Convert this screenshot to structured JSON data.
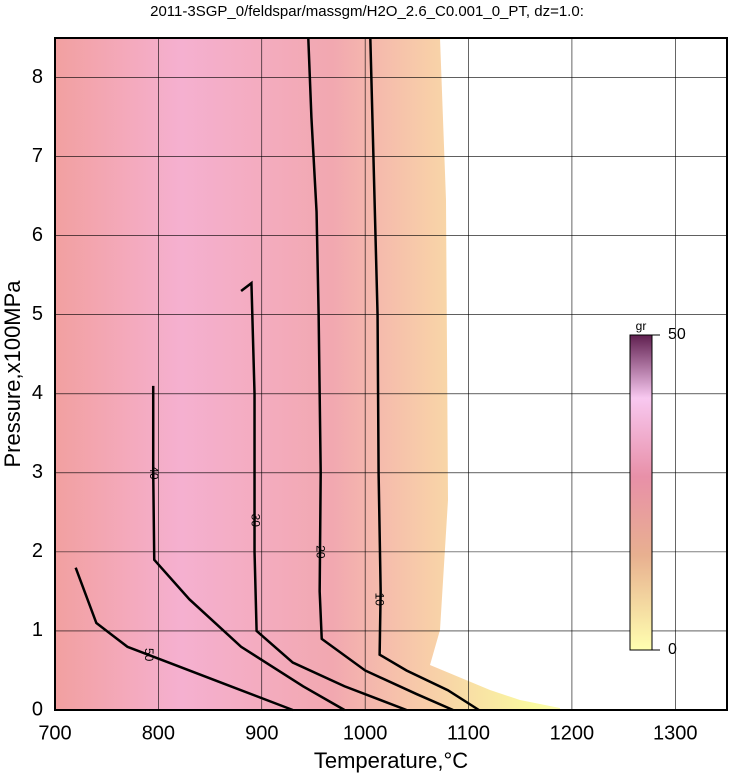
{
  "chart_data": {
    "type": "contour",
    "title": "2011-3SGP_0/feldspar/massgm/H2O_2.6_C0.001_0_PT, dz=1.0:",
    "x_label": "Temperature,°C",
    "y_label": "Pressure,x100MPa",
    "xlim": [
      700,
      1350
    ],
    "xticks": [
      700,
      800,
      900,
      1000,
      1100,
      1200,
      1300
    ],
    "ylim": [
      0,
      8.5
    ],
    "yticks": [
      0,
      1,
      2,
      3,
      4,
      5,
      6,
      7,
      8
    ],
    "grid": true,
    "contours": [
      {
        "level": 10,
        "x": [
          1005,
          1008,
          1012,
          1013,
          1015,
          1014,
          1040,
          1080,
          1110
        ],
        "y": [
          8.5,
          7,
          5,
          3,
          1.5,
          0.7,
          0.5,
          0.25,
          0
        ],
        "label_at": [
          1013,
          1.4
        ]
      },
      {
        "level": 20,
        "x": [
          945,
          948,
          953,
          955,
          957,
          956,
          958,
          1000,
          1050,
          1085
        ],
        "y": [
          8.5,
          7.5,
          6.3,
          5,
          3,
          1.5,
          0.9,
          0.5,
          0.2,
          0
        ],
        "label_at": [
          956,
          2
        ]
      },
      {
        "level": 30,
        "x": [
          880,
          890,
          893,
          893,
          895,
          930,
          980,
          1040
        ],
        "y": [
          5.3,
          5.4,
          4,
          2,
          1.0,
          0.6,
          0.3,
          0
        ],
        "label_at": [
          893,
          2.4
        ]
      },
      {
        "level": 40,
        "x": [
          795,
          795,
          796,
          830,
          880,
          940,
          980
        ],
        "y": [
          4.1,
          3,
          1.9,
          1.4,
          0.8,
          0.3,
          0
        ],
        "label_at": [
          795,
          3
        ]
      },
      {
        "level": 50,
        "x": [
          720,
          740,
          770,
          810,
          870,
          930
        ],
        "y": [
          1.8,
          1.1,
          0.8,
          0.6,
          0.3,
          0
        ],
        "label_at": [
          790,
          0.7
        ]
      }
    ],
    "colorbar": {
      "label": "gr",
      "lim": [
        0,
        50
      ],
      "ticks": [
        0,
        50
      ]
    }
  }
}
